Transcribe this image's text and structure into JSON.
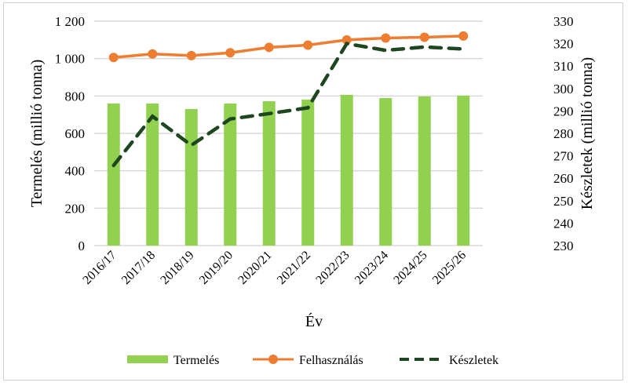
{
  "chart_data": {
    "type": "bar",
    "categories": [
      "2016/17",
      "2017/18",
      "2018/19",
      "2019/20",
      "2020/21",
      "2021/22",
      "2022/23",
      "2023/24",
      "2024/25",
      "2025/26"
    ],
    "series": [
      {
        "name": "Termelés",
        "type": "bar",
        "axis": "left",
        "color": "#92d050",
        "values": [
          760,
          760,
          730,
          760,
          772,
          781,
          806,
          789,
          797,
          802
        ]
      },
      {
        "name": "Felhasználás",
        "type": "line",
        "axis": "left",
        "color": "#ed7d31",
        "marker": "circle",
        "values": [
          1006,
          1025,
          1016,
          1031,
          1060,
          1072,
          1100,
          1110,
          1114,
          1121
        ]
      },
      {
        "name": "Készletek",
        "type": "line",
        "axis": "right",
        "color": "#1e4620",
        "dash": "dashed",
        "values": [
          265.7,
          287.6,
          274.7,
          286.4,
          288.8,
          291.4,
          320,
          317,
          318.5,
          317.6
        ]
      }
    ],
    "xlabel": "Év",
    "ylabel": "Termelés (millió tonna)",
    "y2label": "Készletek (millió tonna)",
    "ylim": [
      0,
      1200
    ],
    "y2lim": [
      230,
      330
    ],
    "yticks": [
      "0",
      "200",
      "400",
      "600",
      "800",
      "1 000",
      "1 200"
    ],
    "y2ticks": [
      "230",
      "240",
      "250",
      "260",
      "270",
      "280",
      "290",
      "300",
      "310",
      "320",
      "330"
    ],
    "grid": true,
    "legend_position": "bottom"
  }
}
